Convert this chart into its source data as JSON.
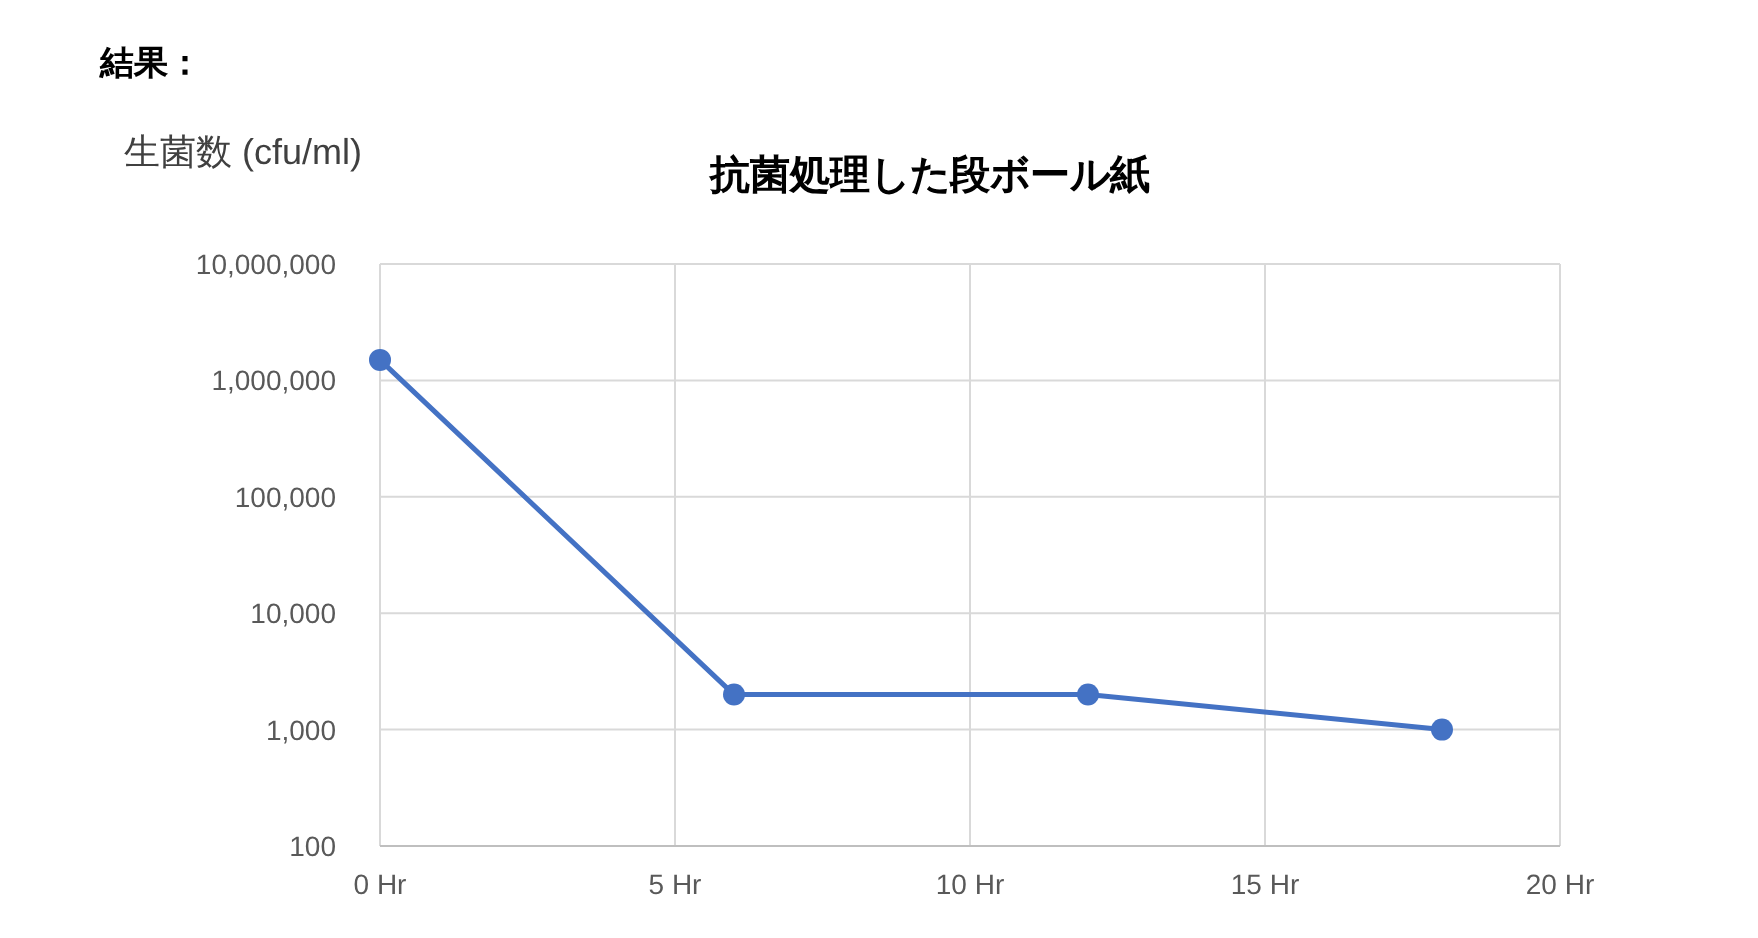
{
  "chart_data": {
    "type": "line",
    "title": "抗菌処理した段ボール紙",
    "ylabel": "生菌数 (cfu/ml)",
    "annotations": [
      "結果："
    ],
    "x": [
      0,
      6,
      12,
      18
    ],
    "series": [
      {
        "color": "#4472c4",
        "values": [
          1500000,
          2000,
          2000,
          1000
        ]
      }
    ],
    "xlim": [
      0,
      20
    ],
    "xticks": [
      {
        "value": 0,
        "label": "0 Hr"
      },
      {
        "value": 5,
        "label": "5 Hr"
      },
      {
        "value": 10,
        "label": "10 Hr"
      },
      {
        "value": 15,
        "label": "15 Hr"
      },
      {
        "value": 20,
        "label": "20 Hr"
      }
    ],
    "ylim": [
      100,
      10000000
    ],
    "yticks": [
      {
        "value": 100,
        "label": "100"
      },
      {
        "value": 1000,
        "label": "1,000"
      },
      {
        "value": 10000,
        "label": "10,000"
      },
      {
        "value": 100000,
        "label": "100,000"
      },
      {
        "value": 1000000,
        "label": "1,000,000"
      },
      {
        "value": 10000000,
        "label": "10,000,000"
      }
    ],
    "log": "y",
    "grid": true,
    "marker": "circle",
    "line_style": "solid"
  }
}
